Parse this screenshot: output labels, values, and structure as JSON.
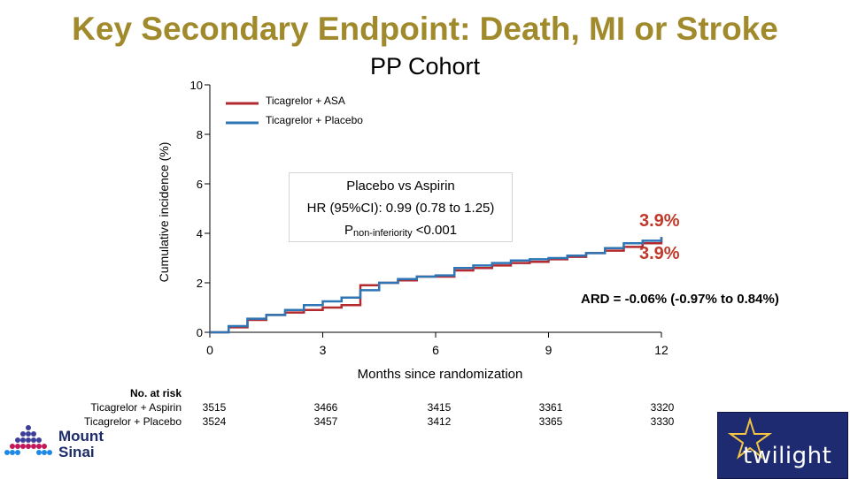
{
  "header": {
    "title": "Key Secondary Endpoint: Death, MI or Stroke",
    "subtitle": "PP Cohort"
  },
  "annotation": {
    "hr_line1": "Placebo vs Aspirin",
    "hr_line2": "HR (95%CI): 0.99 (0.78 to 1.25)",
    "p_main": "P",
    "p_sub": "non-inferiority",
    "p_value": " <0.001",
    "final_red": "3.9%",
    "final_blue": "3.9%",
    "ard": "ARD = -0.06% (-0.97% to 0.84%)"
  },
  "risk_table": {
    "header": "No. at risk",
    "rows": [
      {
        "label": "Ticagrelor + Aspirin",
        "values": [
          "3515",
          "3466",
          "3415",
          "3361",
          "3320"
        ]
      },
      {
        "label": "Ticagrelor + Placebo",
        "values": [
          "3524",
          "3457",
          "3412",
          "3365",
          "3330"
        ]
      }
    ]
  },
  "logos": {
    "mount_sinai_line1": "Mount",
    "mount_sinai_line2": "Sinai",
    "twilight": "twilight"
  },
  "colors": {
    "title": "#a08a2c",
    "aspirin": "#b22a2e",
    "placebo": "#2e75b6",
    "final_value": "#c0392b",
    "twilight_bg": "#1e2b70"
  },
  "chart_data": {
    "type": "line",
    "title": "",
    "xlabel": "Months since randomization",
    "ylabel": "Cumulative incidence (%)",
    "xlim": [
      0,
      12
    ],
    "ylim": [
      0,
      10
    ],
    "x_ticks": [
      0,
      3,
      6,
      9,
      12
    ],
    "y_ticks": [
      0,
      2,
      4,
      6,
      8,
      10
    ],
    "grid": false,
    "legend_position": "top-left",
    "series": [
      {
        "name": "Ticagrelor + ASA",
        "color": "#b22a2e",
        "x": [
          0,
          0.5,
          1,
          1.5,
          2,
          2.5,
          3,
          3.5,
          4,
          4.5,
          5,
          5.5,
          6,
          6.5,
          7,
          7.5,
          8,
          8.5,
          9,
          9.5,
          10,
          10.5,
          11,
          11.5,
          12
        ],
        "y": [
          0,
          0.2,
          0.5,
          0.7,
          0.8,
          0.9,
          1.0,
          1.1,
          1.9,
          2.0,
          2.1,
          2.25,
          2.25,
          2.5,
          2.6,
          2.7,
          2.8,
          2.85,
          2.95,
          3.05,
          3.2,
          3.3,
          3.45,
          3.6,
          3.85
        ]
      },
      {
        "name": "Ticagrelor + Placebo",
        "color": "#2e75b6",
        "x": [
          0,
          0.5,
          1,
          1.5,
          2,
          2.5,
          3,
          3.5,
          4,
          4.5,
          5,
          5.5,
          6,
          6.5,
          7,
          7.5,
          8,
          8.5,
          9,
          9.5,
          10,
          10.5,
          11,
          11.5,
          12
        ],
        "y": [
          0,
          0.25,
          0.55,
          0.7,
          0.9,
          1.1,
          1.25,
          1.4,
          1.7,
          2.0,
          2.15,
          2.25,
          2.3,
          2.6,
          2.7,
          2.8,
          2.9,
          2.95,
          3.0,
          3.1,
          3.2,
          3.4,
          3.6,
          3.7,
          3.85
        ]
      }
    ],
    "annotations": [
      "Placebo vs Aspirin",
      "HR (95%CI): 0.99 (0.78 to 1.25)",
      "Pnon-inferiority <0.001",
      "3.9%",
      "3.9%",
      "ARD = -0.06% (-0.97% to 0.84%)"
    ]
  }
}
